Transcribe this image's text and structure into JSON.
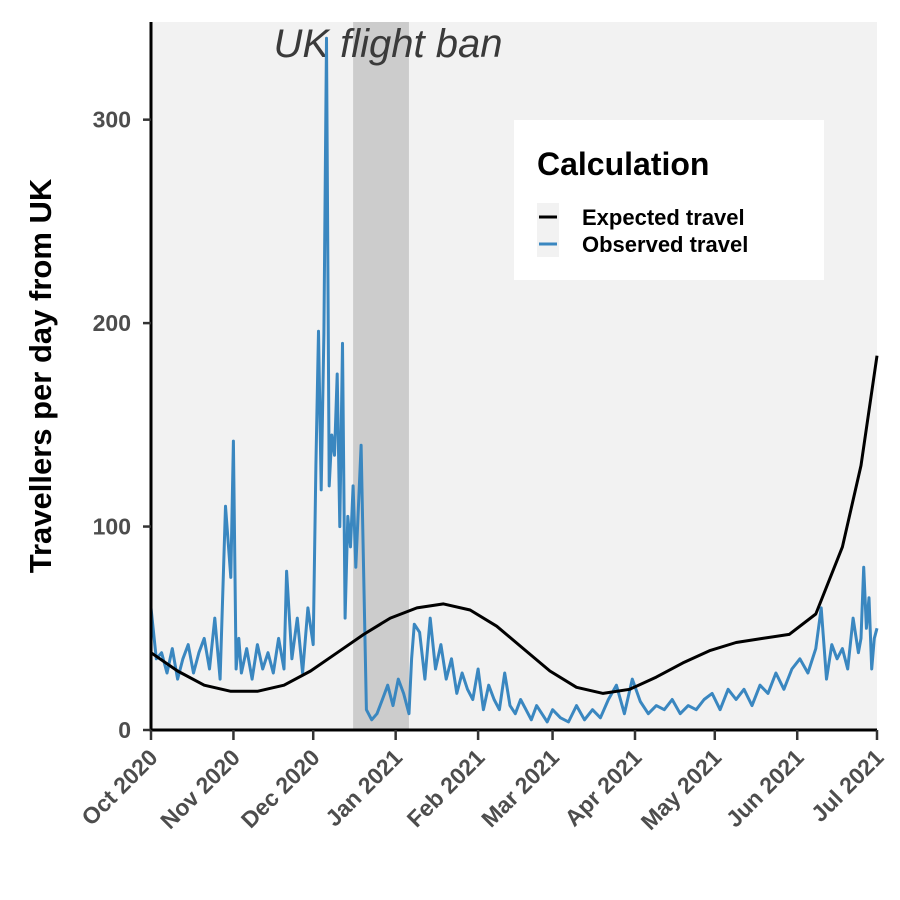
{
  "chart_data": {
    "type": "line",
    "title": "",
    "xlabel": "",
    "ylabel": "Travellers per day from UK",
    "x_axis": {
      "type": "date",
      "range": [
        "2020-10-01",
        "2021-07-01"
      ],
      "ticks": [
        "2020-10-01",
        "2020-11-01",
        "2020-12-01",
        "2021-01-01",
        "2021-02-01",
        "2021-03-01",
        "2021-04-01",
        "2021-05-01",
        "2021-06-01",
        "2021-07-01"
      ],
      "tick_labels": [
        "Oct 2020",
        "Nov 2020",
        "Dec 2020",
        "Jan 2021",
        "Feb 2021",
        "Mar 2021",
        "Apr 2021",
        "May 2021",
        "Jun 2021",
        "Jul 2021"
      ]
    },
    "y_axis": {
      "range": [
        0,
        348
      ],
      "ticks": [
        0,
        100,
        200,
        300
      ],
      "tick_labels": [
        "0",
        "100",
        "200",
        "300"
      ]
    },
    "grid": false,
    "panel_background": "#f2f2f2",
    "annotation": {
      "text": "UK flight ban",
      "start": "2020-12-16",
      "end": "2021-01-06",
      "fill": "#cccccc"
    },
    "legend": {
      "title": "Calculation",
      "placement": "top-right"
    },
    "series": [
      {
        "name": "Expected travel",
        "color": "#000000",
        "x": [
          "2020-10-01",
          "2020-10-11",
          "2020-10-21",
          "2020-10-31",
          "2020-11-10",
          "2020-11-20",
          "2020-11-30",
          "2020-12-10",
          "2020-12-20",
          "2020-12-30",
          "2021-01-09",
          "2021-01-19",
          "2021-01-29",
          "2021-02-08",
          "2021-02-18",
          "2021-02-28",
          "2021-03-10",
          "2021-03-20",
          "2021-03-30",
          "2021-04-09",
          "2021-04-19",
          "2021-04-29",
          "2021-05-09",
          "2021-05-19",
          "2021-05-29",
          "2021-06-08",
          "2021-06-18",
          "2021-06-25",
          "2021-07-01"
        ],
        "values": [
          38,
          29,
          22,
          19,
          19,
          22,
          29,
          38,
          47,
          55,
          60,
          62,
          59,
          51,
          40,
          29,
          21,
          18,
          20,
          26,
          33,
          39,
          43,
          45,
          47,
          57,
          90,
          130,
          184
        ]
      },
      {
        "name": "Observed travel",
        "color": "#3a87c0",
        "x": [
          "2020-10-01",
          "2020-10-03",
          "2020-10-05",
          "2020-10-07",
          "2020-10-09",
          "2020-10-11",
          "2020-10-13",
          "2020-10-15",
          "2020-10-17",
          "2020-10-19",
          "2020-10-21",
          "2020-10-23",
          "2020-10-25",
          "2020-10-27",
          "2020-10-29",
          "2020-10-31",
          "2020-11-01",
          "2020-11-02",
          "2020-11-03",
          "2020-11-04",
          "2020-11-06",
          "2020-11-08",
          "2020-11-10",
          "2020-11-12",
          "2020-11-14",
          "2020-11-16",
          "2020-11-18",
          "2020-11-20",
          "2020-11-21",
          "2020-11-23",
          "2020-11-25",
          "2020-11-27",
          "2020-11-29",
          "2020-12-01",
          "2020-12-02",
          "2020-12-03",
          "2020-12-04",
          "2020-12-05",
          "2020-12-06",
          "2020-12-07",
          "2020-12-08",
          "2020-12-09",
          "2020-12-10",
          "2020-12-11",
          "2020-12-12",
          "2020-12-13",
          "2020-12-14",
          "2020-12-15",
          "2020-12-16",
          "2020-12-17",
          "2020-12-19",
          "2020-12-21",
          "2020-12-23",
          "2020-12-25",
          "2020-12-27",
          "2020-12-29",
          "2020-12-31",
          "2021-01-02",
          "2021-01-04",
          "2021-01-06",
          "2021-01-07",
          "2021-01-08",
          "2021-01-10",
          "2021-01-12",
          "2021-01-14",
          "2021-01-16",
          "2021-01-18",
          "2021-01-20",
          "2021-01-22",
          "2021-01-24",
          "2021-01-26",
          "2021-01-28",
          "2021-01-30",
          "2021-02-01",
          "2021-02-03",
          "2021-02-05",
          "2021-02-07",
          "2021-02-09",
          "2021-02-11",
          "2021-02-13",
          "2021-02-15",
          "2021-02-17",
          "2021-02-19",
          "2021-02-21",
          "2021-02-23",
          "2021-02-25",
          "2021-02-27",
          "2021-03-01",
          "2021-03-04",
          "2021-03-07",
          "2021-03-10",
          "2021-03-13",
          "2021-03-16",
          "2021-03-19",
          "2021-03-22",
          "2021-03-25",
          "2021-03-28",
          "2021-03-31",
          "2021-04-03",
          "2021-04-06",
          "2021-04-09",
          "2021-04-12",
          "2021-04-15",
          "2021-04-18",
          "2021-04-21",
          "2021-04-24",
          "2021-04-27",
          "2021-04-30",
          "2021-05-03",
          "2021-05-06",
          "2021-05-09",
          "2021-05-12",
          "2021-05-15",
          "2021-05-18",
          "2021-05-21",
          "2021-05-24",
          "2021-05-27",
          "2021-05-30",
          "2021-06-02",
          "2021-06-05",
          "2021-06-08",
          "2021-06-10",
          "2021-06-12",
          "2021-06-14",
          "2021-06-16",
          "2021-06-18",
          "2021-06-20",
          "2021-06-22",
          "2021-06-24",
          "2021-06-25",
          "2021-06-26",
          "2021-06-27",
          "2021-06-28",
          "2021-06-29",
          "2021-06-30",
          "2021-07-01"
        ],
        "values": [
          60,
          35,
          38,
          28,
          40,
          25,
          35,
          42,
          28,
          38,
          45,
          30,
          55,
          25,
          110,
          75,
          142,
          30,
          45,
          28,
          40,
          25,
          42,
          30,
          38,
          28,
          45,
          30,
          78,
          35,
          55,
          28,
          60,
          42,
          130,
          196,
          118,
          195,
          340,
          120,
          145,
          135,
          175,
          100,
          190,
          55,
          105,
          90,
          120,
          80,
          140,
          10,
          5,
          8,
          15,
          22,
          12,
          25,
          18,
          8,
          35,
          52,
          48,
          25,
          55,
          30,
          42,
          25,
          35,
          18,
          28,
          20,
          15,
          30,
          10,
          22,
          15,
          10,
          28,
          12,
          8,
          15,
          10,
          5,
          12,
          8,
          4,
          10,
          6,
          4,
          12,
          5,
          10,
          6,
          15,
          22,
          8,
          25,
          14,
          8,
          12,
          10,
          15,
          8,
          12,
          10,
          15,
          18,
          10,
          20,
          15,
          20,
          12,
          22,
          18,
          28,
          20,
          30,
          35,
          28,
          40,
          60,
          25,
          42,
          35,
          40,
          30,
          55,
          38,
          45,
          80,
          50,
          65,
          30,
          45,
          50
        ]
      }
    ]
  }
}
